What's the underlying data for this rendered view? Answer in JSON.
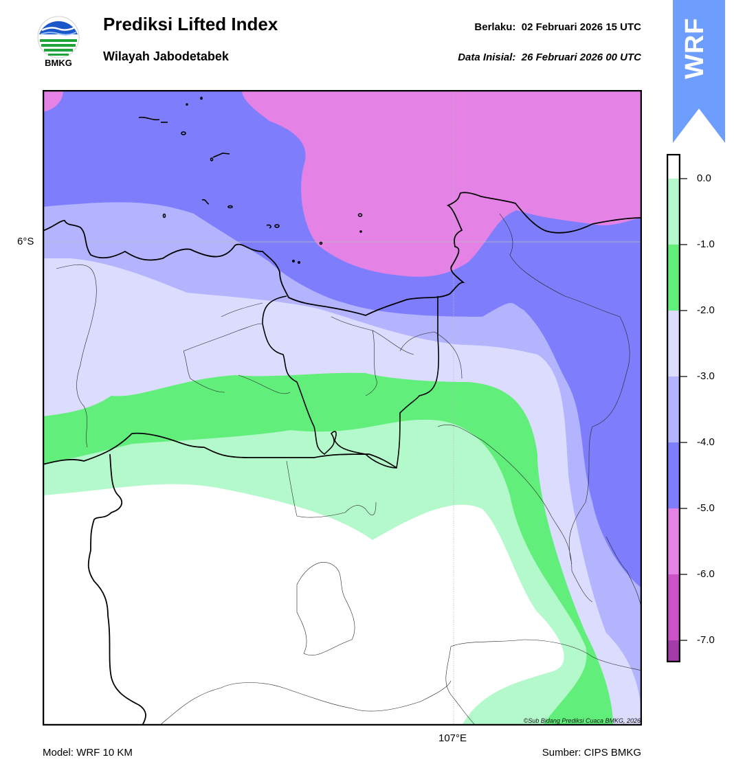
{
  "header": {
    "title": "Prediksi Lifted Index",
    "subtitle": "Wilayah Jabodetabek",
    "valid_label": "Berlaku:  02 Februari 2026 15 UTC",
    "init_label": "Data Inisial:  26 Februari 2026 00 UTC"
  },
  "logo": {
    "text": "BMKG",
    "icon": "bmkg-logo-icon"
  },
  "badge": {
    "text": "WRF",
    "color": "#6d9dfd"
  },
  "map": {
    "lat_label": "6°S",
    "lon_label": "107°E",
    "credit": "©Sub Bidang Prediksi Cuaca BMKG, 2026"
  },
  "colorbar": {
    "ticks": [
      "0.0",
      "-1.0",
      "-2.0",
      "-3.0",
      "-4.0",
      "-5.0",
      "-6.0",
      "-7.0"
    ],
    "bands": [
      {
        "range": "0 to 0.33",
        "color": "#ffffff"
      },
      {
        "range": "-1 to 0",
        "color": "#b4f9cb"
      },
      {
        "range": "-2 to -1",
        "color": "#62ee7b"
      },
      {
        "range": "-3 to -2",
        "color": "#dcdcfe"
      },
      {
        "range": "-4 to -3",
        "color": "#b3b3fe"
      },
      {
        "range": "-5 to -4",
        "color": "#7e7efc"
      },
      {
        "range": "-6 to -5",
        "color": "#e482e6"
      },
      {
        "range": "-7 to -6",
        "color": "#cc52c7"
      },
      {
        "range": "< -7",
        "color": "#a33ca7"
      }
    ]
  },
  "footer": {
    "model": "Model: WRF 10 KM",
    "source": "Sumber: CIPS BMKG"
  }
}
